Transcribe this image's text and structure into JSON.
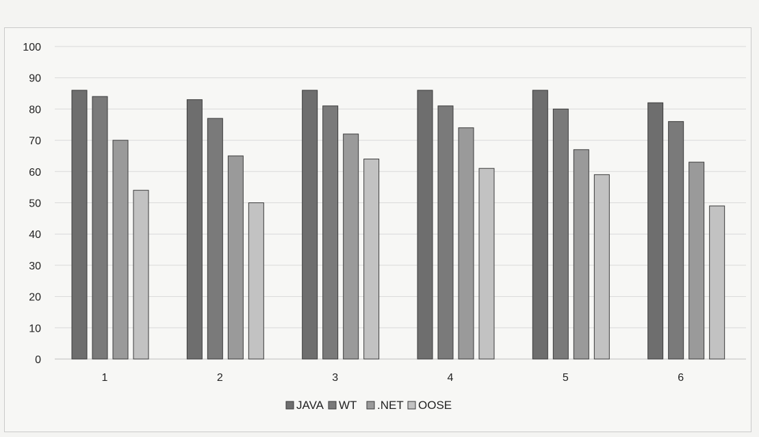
{
  "chart_data": {
    "type": "bar",
    "categories": [
      "1",
      "2",
      "3",
      "4",
      "5",
      "6"
    ],
    "series": [
      {
        "name": "JAVA",
        "values": [
          86,
          83,
          86,
          86,
          86,
          82
        ],
        "color": "#6e6e6e"
      },
      {
        "name": "WT",
        "values": [
          84,
          77,
          81,
          81,
          80,
          76
        ],
        "color": "#7a7a7a"
      },
      {
        "name": ".NET",
        "values": [
          70,
          65,
          72,
          74,
          67,
          63
        ],
        "color": "#9a9a9a"
      },
      {
        "name": "OOSE",
        "values": [
          54,
          50,
          64,
          61,
          59,
          49
        ],
        "color": "#c2c2c2"
      }
    ],
    "title": "",
    "xlabel": "",
    "ylabel": "",
    "ylim": [
      0,
      100
    ],
    "yticks": [
      "0",
      "10",
      "20",
      "30",
      "40",
      "50",
      "60",
      "70",
      "80",
      "90",
      "100"
    ],
    "grid": true,
    "legend_position": "bottom"
  }
}
